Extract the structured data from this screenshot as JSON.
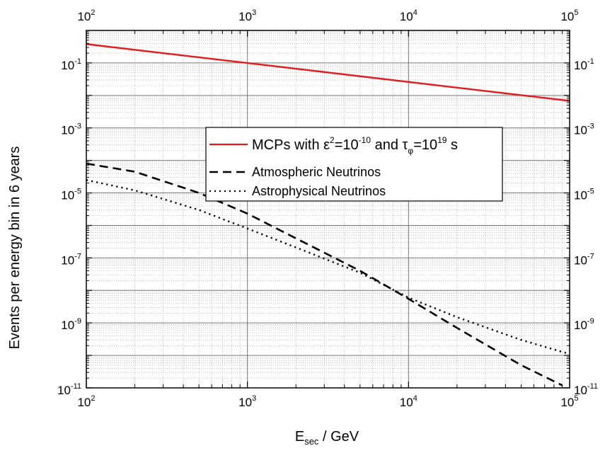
{
  "chart_data": {
    "type": "line",
    "title": "",
    "xlabel": "E_sec / GeV",
    "xlabel_main": "E",
    "xlabel_sub": "sec",
    "xlabel_rest": " / GeV",
    "ylabel": "Events per energy bin in 6 years",
    "xscale": "log",
    "yscale": "log",
    "xlim": [
      100,
      100000
    ],
    "ylim": [
      1e-11,
      1
    ],
    "grid": true,
    "legend_position": "center",
    "x_ticks": [
      {
        "value": 100,
        "base": "10",
        "exp": "2"
      },
      {
        "value": 1000,
        "base": "10",
        "exp": "3"
      },
      {
        "value": 10000,
        "base": "10",
        "exp": "4"
      },
      {
        "value": 100000,
        "base": "10",
        "exp": "5"
      }
    ],
    "y_ticks": [
      {
        "value": 1e-11,
        "base": "10",
        "exp": "-11"
      },
      {
        "value": 1e-09,
        "base": "10",
        "exp": "-9"
      },
      {
        "value": 1e-07,
        "base": "10",
        "exp": "-7"
      },
      {
        "value": 1e-05,
        "base": "10",
        "exp": "-5"
      },
      {
        "value": 0.001,
        "base": "10",
        "exp": "-3"
      },
      {
        "value": 0.1,
        "base": "10",
        "exp": "-1"
      }
    ],
    "series": [
      {
        "name": "MCPs with ε²=10⁻¹⁰ and τφ=10¹⁹ s",
        "legend_parts": [
          "MCPs with ",
          "ε",
          "2",
          "=10",
          "-10",
          " and ",
          "τ",
          "φ",
          "=10",
          "19",
          " s"
        ],
        "color": "#e31a1c",
        "style": "solid",
        "x": [
          100,
          100000
        ],
        "y": [
          0.38,
          0.0068
        ]
      },
      {
        "name": "Atmospheric Neutrinos",
        "color": "#000000",
        "style": "dashed",
        "x": [
          100,
          200,
          500,
          1000,
          2000,
          5000,
          10000,
          20000,
          50000,
          90000
        ],
        "y": [
          8e-05,
          4.5e-05,
          1e-05,
          2.3e-06,
          4e-07,
          4e-08,
          5.5e-09,
          7e-10,
          5e-11,
          1.2e-11
        ]
      },
      {
        "name": "Astrophysical Neutrinos",
        "color": "#000000",
        "style": "dotted",
        "x": [
          100,
          200,
          500,
          1000,
          2000,
          5000,
          10000,
          20000,
          50000,
          100000
        ],
        "y": [
          2.5e-05,
          1.2e-05,
          3e-06,
          8e-07,
          2.1e-07,
          3.5e-08,
          6e-09,
          1.5e-09,
          3e-10,
          1.1e-10
        ]
      }
    ]
  }
}
